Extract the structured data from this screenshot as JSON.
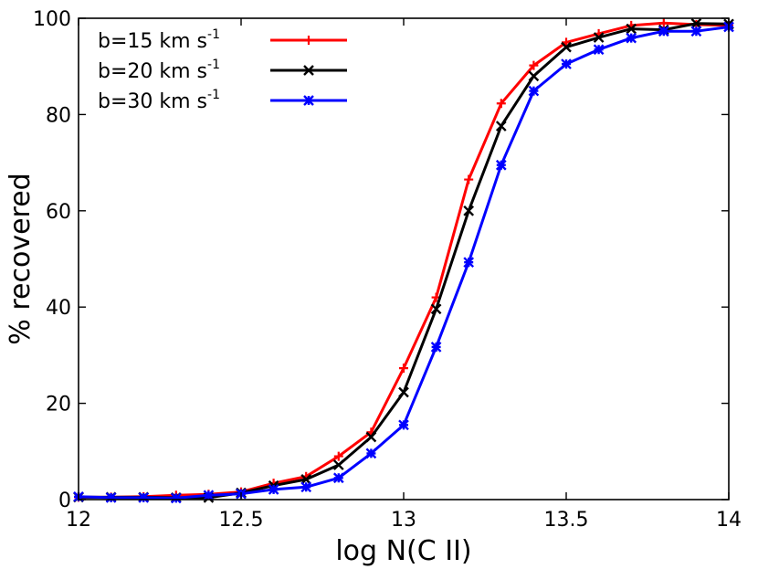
{
  "chart_data": {
    "type": "line",
    "title": "",
    "xlabel": "log N(C II)",
    "ylabel": "% recovered",
    "xlim": [
      12,
      14
    ],
    "ylim": [
      0,
      100
    ],
    "xticks": [
      12,
      12.5,
      13,
      13.5,
      14
    ],
    "xtick_labels": [
      "12",
      "12.5",
      "13",
      "13.5",
      "14"
    ],
    "yticks": [
      0,
      20,
      40,
      60,
      80,
      100
    ],
    "ytick_labels": [
      "0",
      "20",
      "40",
      "60",
      "80",
      "100"
    ],
    "grid": false,
    "legend_position": "top-left",
    "x": [
      12.0,
      12.1,
      12.2,
      12.3,
      12.4,
      12.5,
      12.6,
      12.7,
      12.8,
      12.9,
      13.0,
      13.1,
      13.2,
      13.3,
      13.4,
      13.5,
      13.6,
      13.7,
      13.8,
      13.9,
      14.0
    ],
    "series": [
      {
        "name": "b=15 km s",
        "name_sup": "-1",
        "color": "#ff0000",
        "marker": "plus",
        "values": [
          0.5,
          0.5,
          0.6,
          0.9,
          1.1,
          1.6,
          3.4,
          4.8,
          9.0,
          14.0,
          27.3,
          42.0,
          66.5,
          82.3,
          90.2,
          95.0,
          96.8,
          98.5,
          99.0,
          98.7,
          98.5
        ]
      },
      {
        "name": "b=20 km s",
        "name_sup": "-1",
        "color": "#000000",
        "marker": "x",
        "values": [
          0.5,
          0.5,
          0.5,
          0.4,
          0.4,
          1.4,
          2.9,
          4.2,
          7.2,
          13.0,
          22.3,
          39.6,
          60.0,
          77.6,
          88.0,
          94.0,
          96.0,
          97.8,
          97.6,
          98.9,
          98.8
        ]
      },
      {
        "name": "b=30 km s",
        "name_sup": "-1",
        "color": "#0000ff",
        "marker": "star",
        "values": [
          0.6,
          0.4,
          0.4,
          0.3,
          0.9,
          1.2,
          2.1,
          2.6,
          4.5,
          9.6,
          15.5,
          31.7,
          49.3,
          69.5,
          84.9,
          90.5,
          93.5,
          95.9,
          97.3,
          97.3,
          98.2
        ]
      }
    ]
  }
}
